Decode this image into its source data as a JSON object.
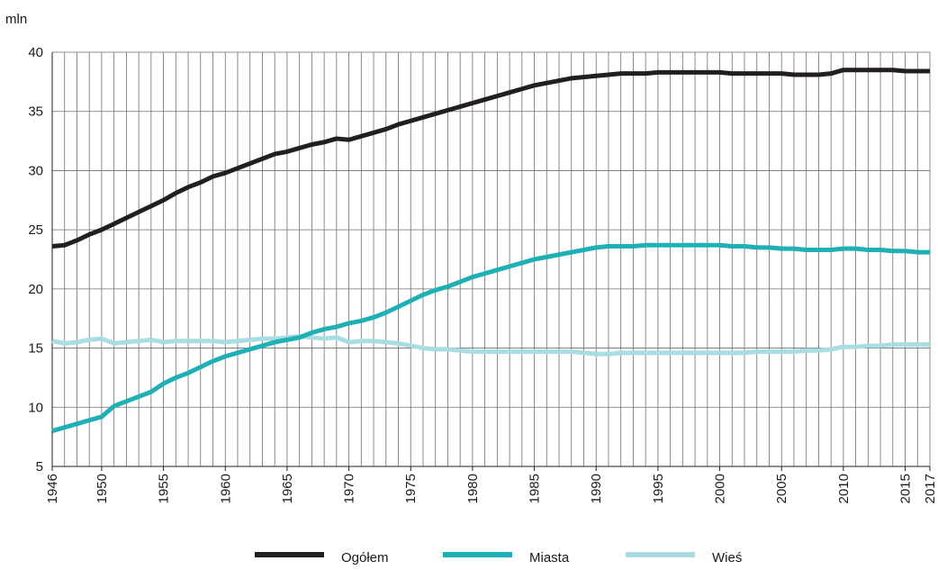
{
  "chart_data": {
    "type": "line",
    "ylabel": "mln",
    "ylim": [
      5,
      40
    ],
    "yticks": [
      5,
      10,
      15,
      20,
      25,
      30,
      35,
      40
    ],
    "xlim": [
      1946,
      2017
    ],
    "xticks": [
      1946,
      1950,
      1955,
      1960,
      1965,
      1970,
      1975,
      1980,
      1985,
      1990,
      1995,
      2000,
      2005,
      2010,
      2015,
      2017
    ],
    "grid": true,
    "legend_position": "bottom",
    "x": [
      1946,
      1947,
      1948,
      1949,
      1950,
      1951,
      1952,
      1953,
      1954,
      1955,
      1956,
      1957,
      1958,
      1959,
      1960,
      1961,
      1962,
      1963,
      1964,
      1965,
      1966,
      1967,
      1968,
      1969,
      1970,
      1971,
      1972,
      1973,
      1974,
      1975,
      1976,
      1977,
      1978,
      1979,
      1980,
      1981,
      1982,
      1983,
      1984,
      1985,
      1986,
      1987,
      1988,
      1989,
      1990,
      1991,
      1992,
      1993,
      1994,
      1995,
      1996,
      1997,
      1998,
      1999,
      2000,
      2001,
      2002,
      2003,
      2004,
      2005,
      2006,
      2007,
      2008,
      2009,
      2010,
      2011,
      2012,
      2013,
      2014,
      2015,
      2016,
      2017
    ],
    "series": [
      {
        "name": "Ogółem",
        "color": "#231f20",
        "values": [
          23.6,
          23.7,
          24.1,
          24.6,
          25.0,
          25.5,
          26.0,
          26.5,
          27.0,
          27.5,
          28.1,
          28.6,
          29.0,
          29.5,
          29.8,
          30.2,
          30.6,
          31.0,
          31.4,
          31.6,
          31.9,
          32.2,
          32.4,
          32.7,
          32.6,
          32.9,
          33.2,
          33.5,
          33.9,
          34.2,
          34.5,
          34.8,
          35.1,
          35.4,
          35.7,
          36.0,
          36.3,
          36.6,
          36.9,
          37.2,
          37.4,
          37.6,
          37.8,
          37.9,
          38.0,
          38.1,
          38.2,
          38.2,
          38.2,
          38.3,
          38.3,
          38.3,
          38.3,
          38.3,
          38.3,
          38.2,
          38.2,
          38.2,
          38.2,
          38.2,
          38.1,
          38.1,
          38.1,
          38.2,
          38.5,
          38.5,
          38.5,
          38.5,
          38.5,
          38.4,
          38.4,
          38.4
        ]
      },
      {
        "name": "Miasta",
        "color": "#1fb0b5",
        "values": [
          8.0,
          8.3,
          8.6,
          8.9,
          9.2,
          10.1,
          10.5,
          10.9,
          11.3,
          12.0,
          12.5,
          12.9,
          13.4,
          13.9,
          14.3,
          14.6,
          14.9,
          15.2,
          15.5,
          15.7,
          15.9,
          16.3,
          16.6,
          16.8,
          17.1,
          17.3,
          17.6,
          18.0,
          18.5,
          19.0,
          19.5,
          19.9,
          20.2,
          20.6,
          21.0,
          21.3,
          21.6,
          21.9,
          22.2,
          22.5,
          22.7,
          22.9,
          23.1,
          23.3,
          23.5,
          23.6,
          23.6,
          23.6,
          23.7,
          23.7,
          23.7,
          23.7,
          23.7,
          23.7,
          23.7,
          23.6,
          23.6,
          23.5,
          23.5,
          23.4,
          23.4,
          23.3,
          23.3,
          23.3,
          23.4,
          23.4,
          23.3,
          23.3,
          23.2,
          23.2,
          23.1,
          23.1
        ]
      },
      {
        "name": "Wieś",
        "color": "#a9dde1",
        "values": [
          15.6,
          15.4,
          15.5,
          15.7,
          15.8,
          15.4,
          15.5,
          15.6,
          15.7,
          15.5,
          15.6,
          15.6,
          15.6,
          15.6,
          15.5,
          15.6,
          15.7,
          15.8,
          15.8,
          15.9,
          16.0,
          15.9,
          15.8,
          15.9,
          15.5,
          15.6,
          15.6,
          15.5,
          15.4,
          15.2,
          15.0,
          14.9,
          14.9,
          14.8,
          14.7,
          14.7,
          14.7,
          14.7,
          14.7,
          14.7,
          14.7,
          14.7,
          14.7,
          14.6,
          14.5,
          14.5,
          14.6,
          14.6,
          14.6,
          14.6,
          14.6,
          14.6,
          14.6,
          14.6,
          14.6,
          14.6,
          14.6,
          14.7,
          14.7,
          14.7,
          14.7,
          14.8,
          14.8,
          14.9,
          15.1,
          15.1,
          15.2,
          15.2,
          15.3,
          15.3,
          15.3,
          15.3
        ]
      }
    ]
  }
}
